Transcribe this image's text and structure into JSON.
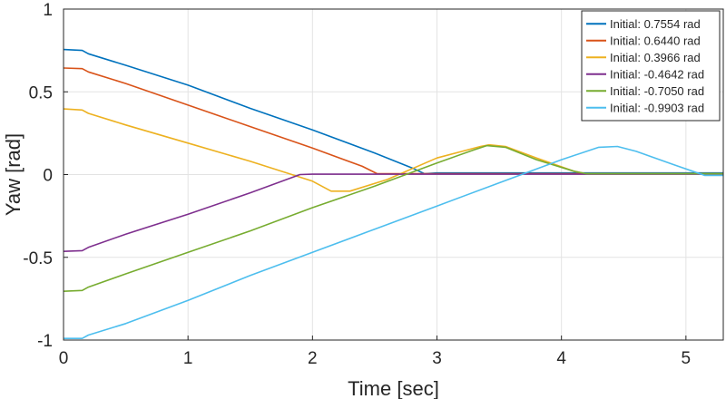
{
  "chart_data": {
    "type": "line",
    "title": "",
    "xlabel": "Time [sec]",
    "ylabel": "Yaw [rad]",
    "xlim": [
      0,
      5.3
    ],
    "ylim": [
      -1,
      1
    ],
    "xticks": [
      {
        "value": 0,
        "label": "0"
      },
      {
        "value": 1,
        "label": "1"
      },
      {
        "value": 2,
        "label": "2"
      },
      {
        "value": 3,
        "label": "3"
      },
      {
        "value": 4,
        "label": "4"
      },
      {
        "value": 5,
        "label": "5"
      }
    ],
    "yticks": [
      {
        "value": 1,
        "label": "1"
      },
      {
        "value": 0.5,
        "label": "0.5"
      },
      {
        "value": 0,
        "label": "0"
      },
      {
        "value": -0.5,
        "label": "-0.5"
      },
      {
        "value": -1,
        "label": "-1"
      }
    ],
    "grid": true,
    "legend_position": "top-right",
    "series": [
      {
        "name": "Initial: 0.7554 rad",
        "color": "#0072BD",
        "x": [
          0,
          0.15,
          0.2,
          0.5,
          1.0,
          1.5,
          2.0,
          2.5,
          2.8,
          2.9,
          3.0,
          3.5,
          4.0,
          4.5,
          5.0,
          5.3
        ],
        "y": [
          0.7554,
          0.75,
          0.73,
          0.66,
          0.54,
          0.4,
          0.27,
          0.13,
          0.04,
          0.005,
          0.01,
          0.01,
          0.01,
          0.01,
          0.01,
          0.01
        ]
      },
      {
        "name": "Initial: 0.6440 rad",
        "color": "#D95319",
        "x": [
          0,
          0.15,
          0.2,
          0.5,
          1.0,
          1.5,
          2.0,
          2.4,
          2.52,
          2.6,
          3.0,
          3.5,
          4.0,
          4.5,
          5.0,
          5.3
        ],
        "y": [
          0.644,
          0.64,
          0.62,
          0.55,
          0.42,
          0.29,
          0.16,
          0.05,
          0.005,
          0.005,
          0.005,
          0.005,
          0.005,
          0.005,
          0.005,
          0.005
        ]
      },
      {
        "name": "Initial: 0.3966 rad",
        "color": "#EDB120",
        "x": [
          0,
          0.15,
          0.2,
          0.5,
          1.0,
          1.5,
          2.0,
          2.15,
          2.3,
          2.6,
          3.0,
          3.35,
          3.42,
          3.55,
          3.8,
          4.1,
          4.2,
          4.5,
          5.0,
          5.3
        ],
        "y": [
          0.3966,
          0.39,
          0.37,
          0.3,
          0.19,
          0.08,
          -0.04,
          -0.1,
          -0.1,
          -0.03,
          0.1,
          0.17,
          0.18,
          0.17,
          0.1,
          0.02,
          0.005,
          0.005,
          0.005,
          0.005
        ]
      },
      {
        "name": "Initial: -0.4642 rad",
        "color": "#7E2F8E",
        "x": [
          0,
          0.15,
          0.2,
          0.5,
          1.0,
          1.5,
          1.9,
          2.0,
          2.5,
          3.0,
          3.5,
          4.0,
          4.5,
          5.0,
          5.3
        ],
        "y": [
          -0.4642,
          -0.46,
          -0.44,
          -0.36,
          -0.24,
          -0.11,
          0.0,
          0.002,
          0.002,
          0.002,
          0.002,
          0.002,
          0.002,
          0.002,
          0.002
        ]
      },
      {
        "name": "Initial: -0.7050 rad",
        "color": "#77AC30",
        "x": [
          0,
          0.15,
          0.2,
          0.5,
          1.0,
          1.5,
          2.0,
          2.5,
          3.0,
          3.3,
          3.4,
          3.55,
          3.8,
          4.1,
          4.2,
          4.5,
          5.0,
          5.3
        ],
        "y": [
          -0.705,
          -0.7,
          -0.68,
          -0.6,
          -0.47,
          -0.34,
          -0.2,
          -0.07,
          0.07,
          0.15,
          0.175,
          0.165,
          0.09,
          0.02,
          0.005,
          0.005,
          0.005,
          0.005
        ]
      },
      {
        "name": "Initial: -0.9903 rad",
        "color": "#4DBEEE",
        "x": [
          0,
          0.15,
          0.2,
          0.5,
          1.0,
          1.5,
          2.0,
          2.5,
          3.0,
          3.5,
          4.0,
          4.3,
          4.45,
          4.6,
          4.9,
          5.15,
          5.3
        ],
        "y": [
          -0.9903,
          -0.99,
          -0.97,
          -0.9,
          -0.76,
          -0.61,
          -0.47,
          -0.33,
          -0.19,
          -0.05,
          0.09,
          0.165,
          0.17,
          0.14,
          0.06,
          -0.005,
          -0.005
        ]
      }
    ]
  }
}
